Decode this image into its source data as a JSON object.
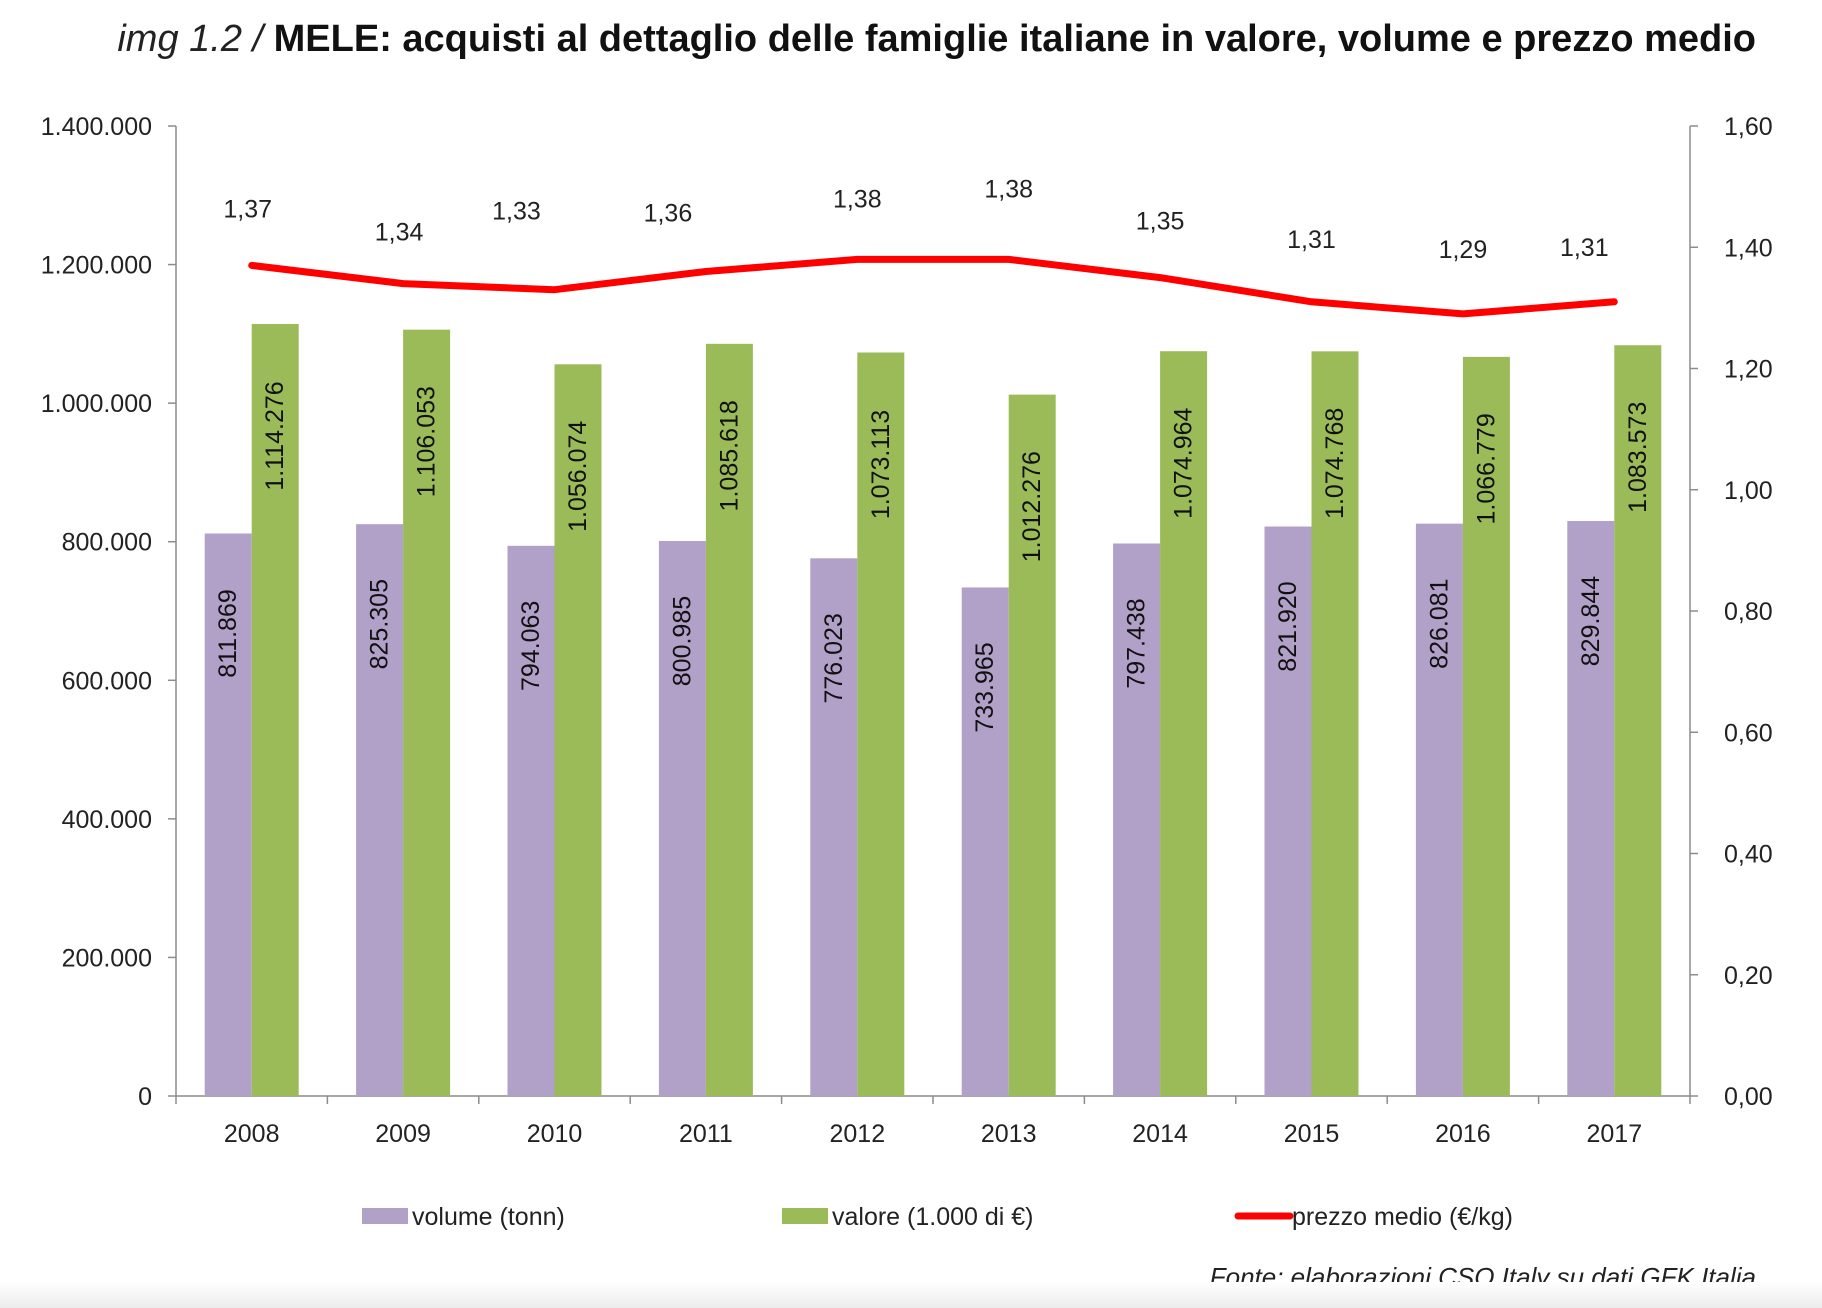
{
  "title": {
    "prefix": "img 1.2 /",
    "main": "MELE: acquisti al dettaglio delle famiglie italiane in valore, volume e prezzo medio"
  },
  "source": "Fonte: elaborazioni CSO Italy su dati GFK Italia",
  "colors": {
    "volume": "#b1a0c7",
    "valore": "#9bbb59",
    "prezzo": "#ff0000",
    "axis": "#8c8c8c",
    "text": "#222222"
  },
  "chart_data": {
    "type": "bar",
    "title": "MELE: acquisti al dettaglio delle famiglie italiane in valore, volume e prezzo medio",
    "categories": [
      "2008",
      "2009",
      "2010",
      "2011",
      "2012",
      "2013",
      "2014",
      "2015",
      "2016",
      "2017"
    ],
    "series": [
      {
        "name": "volume (tonn)",
        "type": "bar",
        "axis": "left",
        "color": "#b1a0c7",
        "values": [
          811869,
          825305,
          794063,
          800985,
          776023,
          733965,
          797438,
          821920,
          826081,
          829844
        ],
        "labels": [
          "811.869",
          "825.305",
          "794.063",
          "800.985",
          "776.023",
          "733.965",
          "797.438",
          "821.920",
          "826.081",
          "829.844"
        ]
      },
      {
        "name": "valore (1.000 di €)",
        "type": "bar",
        "axis": "left",
        "color": "#9bbb59",
        "values": [
          1114276,
          1106053,
          1056074,
          1085618,
          1073113,
          1012276,
          1074964,
          1074768,
          1066779,
          1083573
        ],
        "labels": [
          "1.114.276",
          "1.106.053",
          "1.056.074",
          "1.085.618",
          "1.073.113",
          "1.012.276",
          "1.074.964",
          "1.074.768",
          "1.066.779",
          "1.083.573"
        ]
      },
      {
        "name": "prezzo medio (€/kg)",
        "type": "line",
        "axis": "right",
        "color": "#ff0000",
        "values": [
          1.37,
          1.34,
          1.33,
          1.36,
          1.38,
          1.38,
          1.35,
          1.31,
          1.29,
          1.31
        ],
        "labels": [
          "1,37",
          "1,34",
          "1,33",
          "1,36",
          "1,38",
          "1,38",
          "1,35",
          "1,31",
          "1,29",
          "1,31"
        ]
      }
    ],
    "y_left": {
      "min": 0,
      "max": 1400000,
      "ticks": [
        "0",
        "200.000",
        "400.000",
        "600.000",
        "800.000",
        "1.000.000",
        "1.200.000",
        "1.400.000"
      ]
    },
    "y_right": {
      "min": 0,
      "max": 1.6,
      "ticks": [
        "0,00",
        "0,20",
        "0,40",
        "0,60",
        "0,80",
        "1,00",
        "1,20",
        "1,40",
        "1,60"
      ]
    },
    "xlabel": "",
    "ylabel": "",
    "grid": false,
    "legend": "bottom"
  }
}
